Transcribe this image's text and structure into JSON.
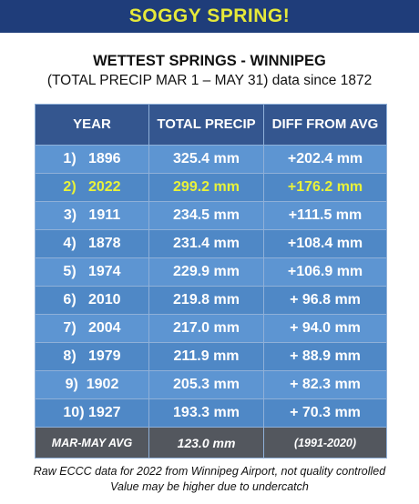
{
  "banner": {
    "title": "SOGGY SPRING!",
    "bg": "#1f3d7a",
    "title_color": "#e6e93a"
  },
  "heading": {
    "line1": "WETTEST SPRINGS - WINNIPEG",
    "line2": "(TOTAL PRECIP MAR 1 – MAY 31) data since 1872"
  },
  "table": {
    "headers": [
      "YEAR",
      "TOTAL PRECIP",
      "DIFF FROM AVG"
    ],
    "rows": [
      {
        "year": "1)   1896",
        "precip": "325.4 mm",
        "diff": "+202.4 mm",
        "highlight": false
      },
      {
        "year": "2)   2022",
        "precip": "299.2 mm",
        "diff": "+176.2 mm",
        "highlight": true
      },
      {
        "year": "3)   1911",
        "precip": "234.5 mm",
        "diff": "+111.5 mm",
        "highlight": false
      },
      {
        "year": "4)   1878",
        "precip": "231.4 mm",
        "diff": "+108.4 mm",
        "highlight": false
      },
      {
        "year": "5)   1974",
        "precip": "229.9 mm",
        "diff": "+106.9 mm",
        "highlight": false
      },
      {
        "year": "6)   2010",
        "precip": "219.8 mm",
        "diff": "+ 96.8 mm",
        "highlight": false
      },
      {
        "year": "7)   2004",
        "precip": "217.0 mm",
        "diff": "+ 94.0 mm",
        "highlight": false
      },
      {
        "year": "8)   1979",
        "precip": "211.9 mm",
        "diff": "+ 88.9 mm",
        "highlight": false
      },
      {
        "year": "9)  1902",
        "precip": "205.3 mm",
        "diff": "+ 82.3 mm",
        "highlight": false
      },
      {
        "year": "10) 1927",
        "precip": "193.3 mm",
        "diff": "+ 70.3 mm",
        "highlight": false
      }
    ],
    "footer": {
      "label": "MAR-MAY AVG",
      "value": "123.0 mm",
      "period": "(1991-2020)"
    },
    "colors": {
      "header": "#34568f",
      "row": "#5d95d2",
      "row_alt": "#4f88c6",
      "footer": "#53575e",
      "highlight_text": "#e8f23a"
    }
  },
  "notes": {
    "line1": "Raw ECCC data for 2022 from Winnipeg Airport, not quality controlled",
    "line2": "Value may be higher due to undercatch"
  }
}
